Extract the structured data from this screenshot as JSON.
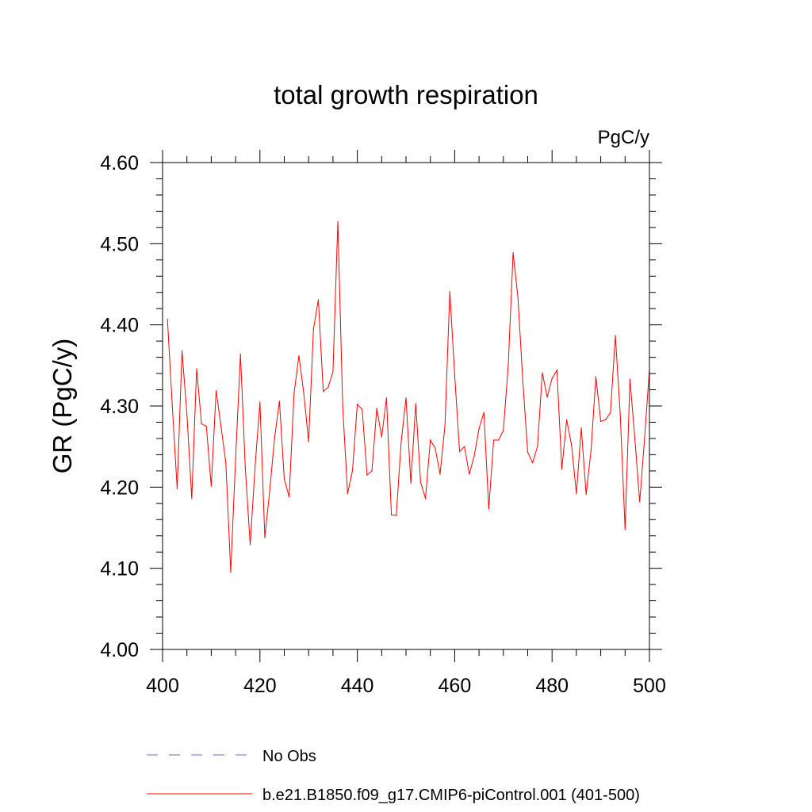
{
  "chart_data": {
    "type": "line",
    "title": "total growth respiration",
    "units_label": "PgC/y",
    "xlabel": "",
    "ylabel": "GR  (PgC/y)",
    "xlim": [
      400,
      500
    ],
    "ylim": [
      4.0,
      4.6
    ],
    "x_ticks": [
      "400",
      "420",
      "440",
      "460",
      "480",
      "500"
    ],
    "y_ticks": [
      "4.00",
      "4.10",
      "4.20",
      "4.30",
      "4.40",
      "4.50",
      "4.60"
    ],
    "x_tick_values": [
      400,
      420,
      440,
      460,
      480,
      500
    ],
    "y_tick_values": [
      4.0,
      4.1,
      4.2,
      4.3,
      4.4,
      4.5,
      4.6
    ],
    "x_minor_step": 5,
    "y_minor_step": 0.02,
    "grid": false,
    "legend_position": "bottom",
    "legend": [
      {
        "name": "No Obs",
        "color": "#6a6ad8",
        "style": "dashed"
      },
      {
        "name": "b.e21.B1850.f09_g17.CMIP6-piControl.001 (401-500)",
        "color": "#ff0000",
        "style": "solid"
      }
    ],
    "series": [
      {
        "name": "b.e21.B1850.f09_g17.CMIP6-piControl.001 (401-500)",
        "color": "#ff0000",
        "x": [
          401,
          402,
          403,
          404,
          405,
          406,
          407,
          408,
          409,
          410,
          411,
          412,
          413,
          414,
          415,
          416,
          417,
          418,
          419,
          420,
          421,
          422,
          423,
          424,
          425,
          426,
          427,
          428,
          429,
          430,
          431,
          432,
          433,
          434,
          435,
          436,
          437,
          438,
          439,
          440,
          441,
          442,
          443,
          444,
          445,
          446,
          447,
          448,
          449,
          450,
          451,
          452,
          453,
          454,
          455,
          456,
          457,
          458,
          459,
          460,
          461,
          462,
          463,
          464,
          465,
          466,
          467,
          468,
          469,
          470,
          471,
          472,
          473,
          474,
          475,
          476,
          477,
          478,
          479,
          480,
          481,
          482,
          483,
          484,
          485,
          486,
          487,
          488,
          489,
          490,
          491,
          492,
          493,
          494,
          495,
          496,
          497,
          498,
          499,
          500
        ],
        "values": [
          4.407,
          4.3,
          4.198,
          4.368,
          4.29,
          4.186,
          4.346,
          4.278,
          4.275,
          4.201,
          4.319,
          4.275,
          4.23,
          4.095,
          4.235,
          4.364,
          4.223,
          4.129,
          4.225,
          4.305,
          4.138,
          4.195,
          4.26,
          4.306,
          4.21,
          4.188,
          4.315,
          4.362,
          4.316,
          4.256,
          4.395,
          4.431,
          4.318,
          4.323,
          4.342,
          4.527,
          4.3,
          4.192,
          4.22,
          4.302,
          4.296,
          4.215,
          4.22,
          4.297,
          4.262,
          4.31,
          4.166,
          4.165,
          4.255,
          4.31,
          4.205,
          4.303,
          4.206,
          4.186,
          4.258,
          4.248,
          4.216,
          4.276,
          4.441,
          4.338,
          4.244,
          4.25,
          4.216,
          4.238,
          4.272,
          4.292,
          4.173,
          4.258,
          4.258,
          4.27,
          4.35,
          4.489,
          4.433,
          4.33,
          4.243,
          4.23,
          4.25,
          4.341,
          4.311,
          4.334,
          4.344,
          4.222,
          4.283,
          4.252,
          4.192,
          4.273,
          4.191,
          4.245,
          4.336,
          4.281,
          4.283,
          4.292,
          4.387,
          4.29,
          4.148,
          4.333,
          4.26,
          4.182,
          4.26,
          4.345
        ]
      }
    ]
  }
}
